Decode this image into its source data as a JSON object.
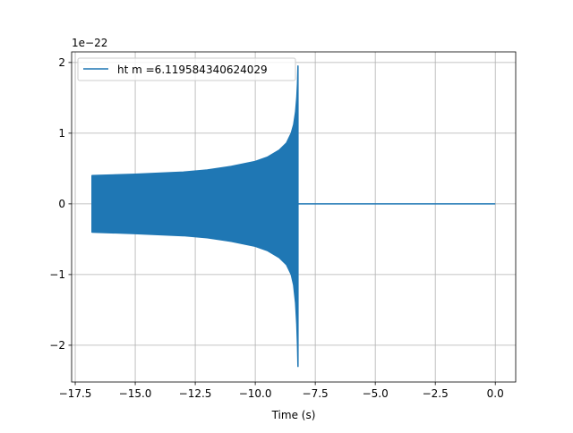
{
  "chart_data": {
    "type": "line",
    "title": "",
    "xlabel": "Time (s)",
    "ylabel": "",
    "y_offset_label": "1e−22",
    "xlim": [
      -17.65,
      0.85
    ],
    "ylim": [
      -2.52,
      2.15
    ],
    "grid": true,
    "legend_position": "upper-left",
    "x_ticks": [
      -17.5,
      -15.0,
      -12.5,
      -10.0,
      -7.5,
      -5.0,
      -2.5,
      0.0
    ],
    "x_tick_labels": [
      "−17.5",
      "−15.0",
      "−12.5",
      "−10.0",
      "−7.5",
      "−5.0",
      "−2.5",
      "0.0"
    ],
    "y_ticks": [
      -2,
      -1,
      0,
      1,
      2
    ],
    "y_tick_labels": [
      "−2",
      "−1",
      "0",
      "1",
      "2"
    ],
    "series": [
      {
        "name": "ht m =6.119584340624029",
        "color": "#1f77b4",
        "oscillating_envelope": {
          "t": [
            -16.8,
            -15.0,
            -13.0,
            -12.0,
            -11.0,
            -10.0,
            -9.5,
            -9.0,
            -8.7,
            -8.5,
            -8.4,
            -8.32,
            -8.27,
            -8.24,
            -8.22
          ],
          "upper": [
            0.4,
            0.42,
            0.45,
            0.48,
            0.53,
            0.6,
            0.66,
            0.76,
            0.86,
            1.0,
            1.12,
            1.3,
            1.5,
            1.7,
            1.95
          ],
          "lower": [
            -0.4,
            -0.42,
            -0.45,
            -0.48,
            -0.53,
            -0.6,
            -0.66,
            -0.76,
            -0.86,
            -1.0,
            -1.15,
            -1.4,
            -1.7,
            -2.0,
            -2.3
          ]
        },
        "flat": {
          "t": [
            -8.2,
            0.0
          ],
          "value": 0
        }
      }
    ]
  }
}
